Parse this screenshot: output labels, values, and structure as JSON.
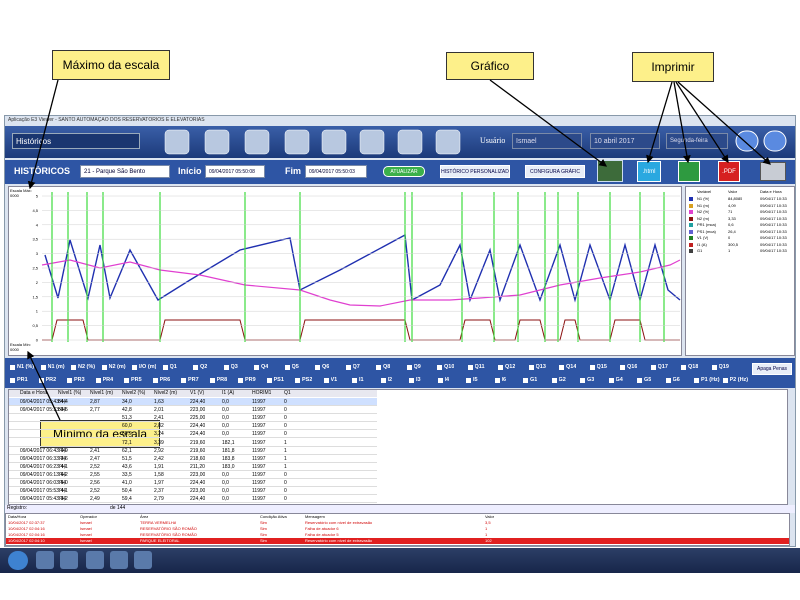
{
  "callouts": [
    "Máximo da escala",
    "Gráfico",
    "Imprimir",
    "Mínimo da escala"
  ],
  "window": {
    "title": "Aplicação E3 Viewer - SANTO AUTOMAÇÃO DOS RESERVATÓRIOS E ELEVATÓRIAS"
  },
  "toolbar": {
    "menu": "Históricos",
    "user_label": "Usuário",
    "user": "Ismael",
    "date": "10 abril 2017",
    "weekday": "Segunda-feira"
  },
  "filter": {
    "title": "HISTÓRICOS",
    "station": "21 - Parque São Bento",
    "start_label": "Início",
    "start": "09/04/2017 05:50:08",
    "end_label": "Fim",
    "end": "09/04/2017 05:50:03",
    "refresh": "ATUALIZAR",
    "custom": "HISTÓRICO PERSONALIZAD",
    "config": "CONFIGURA GRÁFIC",
    "html": ".html",
    "pdf": ".PDF"
  },
  "chart": {
    "max_label": "Escala Máx: 0000",
    "min_label": "Escala Mín: 0000",
    "yticks": [
      "5",
      "4,5",
      "4",
      "3,5",
      "3",
      "2,5",
      "2",
      "1,5",
      "1",
      "0,5",
      "0"
    ]
  },
  "legend": {
    "headers": [
      "Variável",
      "Valor",
      "Data e Hora"
    ],
    "rows": [
      [
        "N1 (%)",
        "84,8085",
        "09/04/17 10:33"
      ],
      [
        "N1 (m)",
        "4,09",
        "09/04/17 10:33"
      ],
      [
        "N2 (%)",
        "71",
        "09/04/17 10:33"
      ],
      [
        "N2 (m)",
        "3,33",
        "09/04/17 10:33"
      ],
      [
        "PR1 (mca)",
        "0,6",
        "09/04/17 10:33"
      ],
      [
        "PS1 (mca)",
        "26,4",
        "09/04/17 10:33"
      ],
      [
        "V1 (V)",
        "0",
        "09/04/17 10:33"
      ],
      [
        "I1 (A)",
        "300,5",
        "09/04/17 10:33"
      ],
      [
        "G1",
        "1",
        "09/04/17 10:33"
      ]
    ]
  },
  "pens": {
    "row1": [
      "N1 (%)",
      "N1 (m)",
      "N2 (%)",
      "N2 (m)",
      "I/O (m)",
      "Q1",
      "Q2",
      "Q3",
      "Q4",
      "Q5",
      "Q6",
      "Q7",
      "Q8",
      "Q9",
      "Q10",
      "Q11",
      "Q12",
      "Q13",
      "Q14",
      "Q15",
      "Q16",
      "Q17",
      "Q18",
      "Q19"
    ],
    "row2": [
      "PR1",
      "PR2",
      "PR3",
      "PR4",
      "PR5",
      "PR6",
      "PR7",
      "PR8",
      "PR9",
      "PS1",
      "PS2",
      "V1",
      "I1",
      "I2",
      "I3",
      "I4",
      "I5",
      "I6",
      "G1",
      "G2",
      "G3",
      "G4",
      "G5",
      "G6",
      "P1 (Hz)",
      "P2 (Hz)"
    ],
    "clear": "Apaga Penas"
  },
  "table": {
    "headers": [
      "Data e Hora",
      "Nível1 (%)",
      "Nível1 (m)",
      "Nível2 (%)",
      "Nível2 (m)",
      "V1 (V)",
      "I1 (A)",
      "HORIM1",
      "Q1"
    ],
    "rows": [
      [
        "09/04/2017 05:43:44",
        "84,4",
        "2,87",
        "34,0",
        "1,63",
        "224,40",
        "0,0",
        "11997",
        "0"
      ],
      [
        "09/04/2017 05:33:44",
        "83,5",
        "2,77",
        "42,8",
        "2,01",
        "223,00",
        "0,0",
        "11997",
        "0"
      ],
      [
        null,
        null,
        null,
        "51,3",
        "2,41",
        "225,00",
        "0,0",
        "11997",
        "0"
      ],
      [
        null,
        null,
        null,
        "60,0",
        "2,82",
        "224,40",
        "0,0",
        "11997",
        "0"
      ],
      [
        null,
        null,
        null,
        "68,9",
        "3,24",
        "224,40",
        "0,0",
        "11997",
        "0"
      ],
      [
        null,
        null,
        null,
        "72,1",
        "3,39",
        "219,60",
        "182,1",
        "11997",
        "1"
      ],
      [
        "09/04/2017 06:43:44",
        "70,9",
        "2,41",
        "62,1",
        "2,92",
        "219,60",
        "181,8",
        "11997",
        "1"
      ],
      [
        "09/04/2017 06:33:44",
        "72,6",
        "2,47",
        "51,5",
        "2,42",
        "218,60",
        "183,8",
        "11997",
        "1"
      ],
      [
        "09/04/2017 06:23:44",
        "74,1",
        "2,52",
        "43,6",
        "1,91",
        "211,20",
        "183,0",
        "11997",
        "1"
      ],
      [
        "09/04/2017 06:13:44",
        "76,2",
        "2,55",
        "33,5",
        "1,58",
        "223,00",
        "0,0",
        "11997",
        "0"
      ],
      [
        "09/04/2017 06:03:44",
        "75,0",
        "2,56",
        "41,0",
        "1,97",
        "224,40",
        "0,0",
        "11997",
        "0"
      ],
      [
        "09/04/2017 05:53:44",
        "74,1",
        "2,52",
        "50,4",
        "2,37",
        "223,00",
        "0,0",
        "11997",
        "0"
      ],
      [
        "09/04/2017 05:43:44",
        "73,2",
        "2,49",
        "59,4",
        "2,79",
        "224,40",
        "0,0",
        "11997",
        "0"
      ]
    ],
    "record_label": "Registro:",
    "record_total": "de 144"
  },
  "alarms": {
    "headers": [
      "Data/Hora",
      "Operador",
      "Área",
      "Condição Ativa",
      "Mensagem",
      "Valor"
    ],
    "rows": [
      [
        "10/04/2017 02:37:37",
        "Ismael",
        "TERRA VERMELHA",
        "Sim",
        "Reservatório com nível de extravasão",
        "3,5"
      ],
      [
        "10/04/2017 02:04:16",
        "Ismael",
        "RESERVATÓRIO SÃO ROMÃO",
        "Sim",
        "Falha de atuador 6",
        "1"
      ],
      [
        "10/04/2017 02:04:16",
        "Ismael",
        "RESERVATÓRIO SÃO ROMÃO",
        "Sim",
        "Falha de atuador 5",
        "1"
      ],
      [
        "10/04/2017 02:04:10",
        "Ismael",
        "PARQUE ELEITORAL",
        "Sim",
        "Reservatório com nível de extravasão",
        "102"
      ]
    ]
  }
}
